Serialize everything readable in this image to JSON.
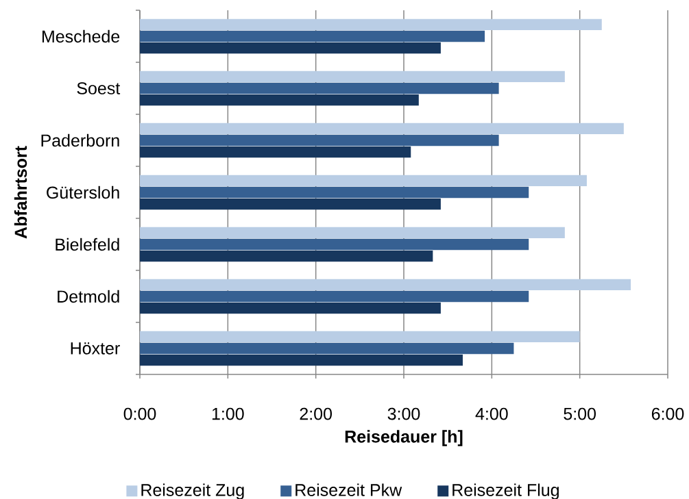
{
  "chart_data": {
    "type": "bar",
    "orientation": "horizontal",
    "categories": [
      "Meschede",
      "Soest",
      "Paderborn",
      "Gütersloh",
      "Bielefeld",
      "Detmold",
      "Höxter"
    ],
    "series": [
      {
        "name": "Reisezeit Zug",
        "color": "#b9cde5",
        "values": [
          5.25,
          4.83,
          5.5,
          5.08,
          4.83,
          5.58,
          5.0
        ]
      },
      {
        "name": "Reisezeit Pkw",
        "color": "#366092",
        "values": [
          3.92,
          4.08,
          4.08,
          4.42,
          4.42,
          4.42,
          4.25
        ]
      },
      {
        "name": "Reisezeit Flug",
        "color": "#17375e",
        "values": [
          3.42,
          3.17,
          3.08,
          3.42,
          3.33,
          3.42,
          3.67
        ]
      }
    ],
    "xlabel": "Reisedauer [h]",
    "ylabel": "Abfahrtsort",
    "xlim": [
      0,
      6
    ],
    "xticks": [
      {
        "value": 0,
        "label": "0:00"
      },
      {
        "value": 1,
        "label": "1:00"
      },
      {
        "value": 2,
        "label": "2:00"
      },
      {
        "value": 3,
        "label": "3:00"
      },
      {
        "value": 4,
        "label": "4:00"
      },
      {
        "value": 5,
        "label": "5:00"
      },
      {
        "value": 6,
        "label": "6:00"
      }
    ],
    "grid": "x",
    "legend": "bottom"
  }
}
